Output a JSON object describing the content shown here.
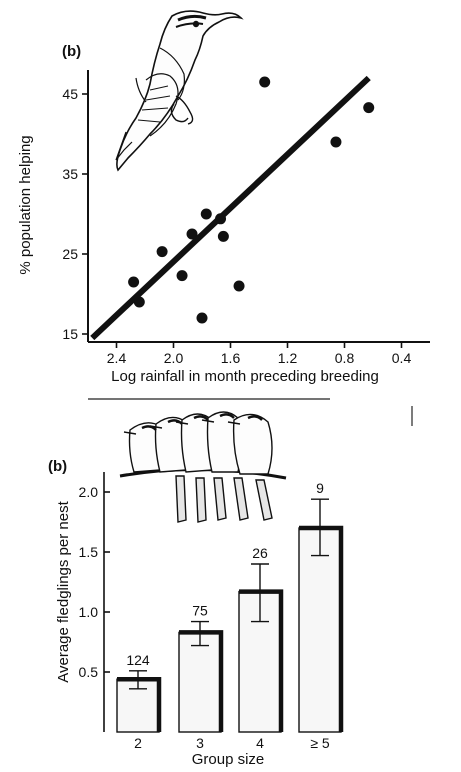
{
  "chart_data": [
    {
      "type": "scatter",
      "panel_label": "(b)",
      "xlabel": "Log rainfall in month preceding breeding",
      "ylabel": "% population helping",
      "xlim": [
        0.2,
        2.6
      ],
      "x_reversed": true,
      "ylim": [
        14,
        48
      ],
      "xticks": [
        2.4,
        2.0,
        1.6,
        1.2,
        0.8,
        0.4
      ],
      "xtick_labels": [
        "2.4",
        "2.0",
        "1.6",
        "1.2",
        "0.8",
        "0.4"
      ],
      "yticks": [
        15,
        25,
        35,
        45
      ],
      "ytick_labels": [
        "15",
        "25",
        "35",
        "45"
      ],
      "points": [
        {
          "x": 2.28,
          "y": 21.5
        },
        {
          "x": 2.24,
          "y": 19.0
        },
        {
          "x": 2.08,
          "y": 25.3
        },
        {
          "x": 1.94,
          "y": 22.3
        },
        {
          "x": 1.87,
          "y": 27.5
        },
        {
          "x": 1.77,
          "y": 30.0
        },
        {
          "x": 1.67,
          "y": 29.4
        },
        {
          "x": 1.65,
          "y": 27.2
        },
        {
          "x": 1.8,
          "y": 17.0
        },
        {
          "x": 1.54,
          "y": 21.0
        },
        {
          "x": 1.36,
          "y": 46.5
        },
        {
          "x": 0.86,
          "y": 39.0
        },
        {
          "x": 0.63,
          "y": 43.3
        }
      ],
      "trendline": {
        "x": [
          2.57,
          0.63
        ],
        "y": [
          14.5,
          47.0
        ]
      },
      "grid": false
    },
    {
      "type": "bar",
      "panel_label": "(b)",
      "xlabel": "Group size",
      "ylabel": "Average fledglings per nest",
      "categories": [
        "2",
        "3",
        "4",
        "≥ 5"
      ],
      "values": [
        0.44,
        0.83,
        1.17,
        1.7
      ],
      "error_low": [
        0.36,
        0.72,
        0.92,
        1.47
      ],
      "error_high": [
        0.51,
        0.92,
        1.4,
        1.94
      ],
      "data_labels": [
        "124",
        "75",
        "26",
        "9"
      ],
      "ylim": [
        0.0,
        2.0
      ],
      "yticks": [
        0.5,
        1.0,
        1.5,
        2.0
      ],
      "ytick_labels": [
        "0.5",
        "1.0",
        "1.5",
        "2.0"
      ],
      "grid": false
    }
  ]
}
